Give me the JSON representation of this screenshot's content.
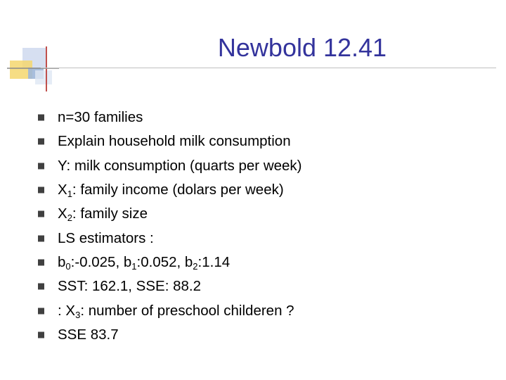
{
  "slide": {
    "title": "Newbold 12.41",
    "bullets": [
      {
        "parts": [
          {
            "t": "n=30 families"
          }
        ]
      },
      {
        "parts": [
          {
            "t": "Explain household milk consumption"
          }
        ]
      },
      {
        "parts": [
          {
            "t": "Y: milk consumption (quarts per week)"
          }
        ]
      },
      {
        "parts": [
          {
            "t": "X"
          },
          {
            "sub": "1"
          },
          {
            "t": ": family income (dolars per week)"
          }
        ]
      },
      {
        "parts": [
          {
            "t": "X"
          },
          {
            "sub": "2"
          },
          {
            "t": ": family size"
          }
        ]
      },
      {
        "parts": [
          {
            "t": "LS estimators :"
          }
        ]
      },
      {
        "parts": [
          {
            "t": "b"
          },
          {
            "sub": "0"
          },
          {
            "t": ":-0.025, b"
          },
          {
            "sub": "1"
          },
          {
            "t": ":0.052, b"
          },
          {
            "sub": "2"
          },
          {
            "t": ":1.14"
          }
        ]
      },
      {
        "parts": [
          {
            "t": "SST: 162.1, SSE: 88.2"
          }
        ]
      },
      {
        "parts": [
          {
            "t": ": X"
          },
          {
            "sub": "3"
          },
          {
            "t": ": number of preschool childeren ?"
          }
        ]
      },
      {
        "parts": [
          {
            "t": "SSE 83.7"
          }
        ]
      }
    ]
  },
  "colors": {
    "title": "#33339c",
    "bullet": "#404040",
    "logo_yellow": "#f5d76e",
    "logo_blue": "#9fb7d9",
    "logo_red": "#c0504d"
  }
}
